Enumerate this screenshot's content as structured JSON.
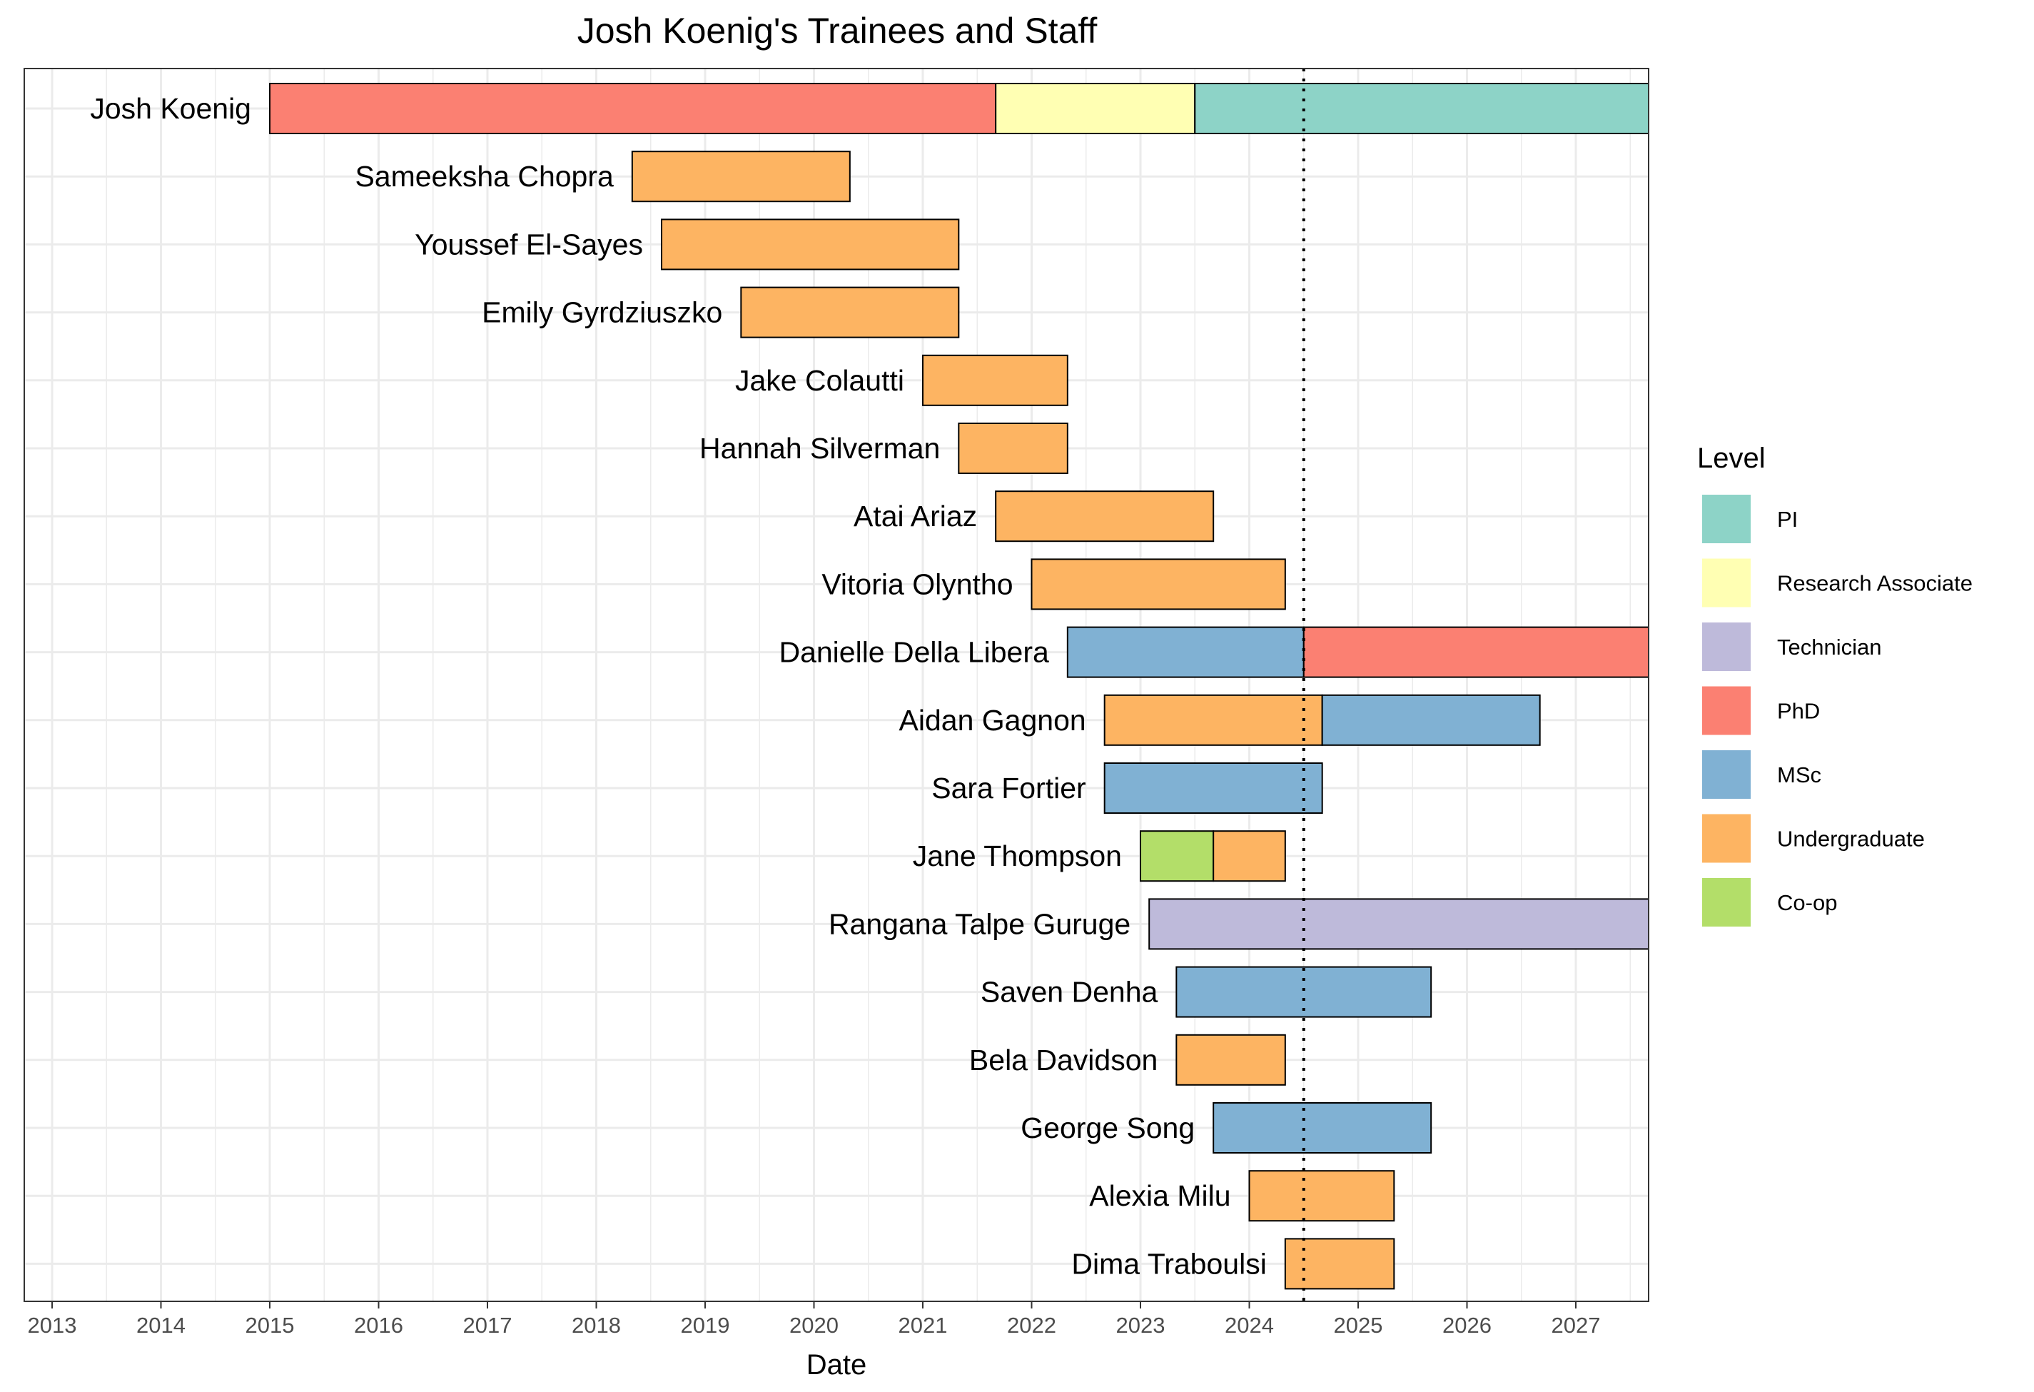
{
  "chart_data": {
    "type": "gantt",
    "title": "Josh Koenig's Trainees and Staff",
    "xlabel": "Date",
    "xlim": [
      2012.73,
      2027.67
    ],
    "x_ticks": [
      "2013",
      "2014",
      "2015",
      "2016",
      "2017",
      "2018",
      "2019",
      "2020",
      "2021",
      "2022",
      "2023",
      "2024",
      "2025",
      "2026",
      "2027"
    ],
    "reference_line": 2024.5,
    "legend": {
      "title": "Level",
      "position": "right",
      "items": [
        {
          "label": "PI",
          "color": "#8DD3C7"
        },
        {
          "label": "Research Associate",
          "color": "#FFFFB3"
        },
        {
          "label": "Technician",
          "color": "#BEBADA"
        },
        {
          "label": "PhD",
          "color": "#FB8072"
        },
        {
          "label": "MSc",
          "color": "#80B1D3"
        },
        {
          "label": "Undergraduate",
          "color": "#FDB462"
        },
        {
          "label": "Co-op",
          "color": "#B3DE69"
        }
      ]
    },
    "rows": [
      {
        "name": "Josh Koenig",
        "segments": [
          {
            "start": 2015.0,
            "end": 2021.67,
            "level": "PhD"
          },
          {
            "start": 2021.67,
            "end": 2023.5,
            "level": "Research Associate"
          },
          {
            "start": 2023.5,
            "end": 2027.67,
            "level": "PI"
          }
        ]
      },
      {
        "name": "Sameeksha Chopra",
        "segments": [
          {
            "start": 2018.33,
            "end": 2020.33,
            "level": "Undergraduate"
          }
        ]
      },
      {
        "name": "Youssef El-Sayes",
        "segments": [
          {
            "start": 2018.6,
            "end": 2021.33,
            "level": "Undergraduate"
          }
        ]
      },
      {
        "name": "Emily Gyrdziuszko",
        "segments": [
          {
            "start": 2019.33,
            "end": 2021.33,
            "level": "Undergraduate"
          }
        ]
      },
      {
        "name": "Jake Colautti",
        "segments": [
          {
            "start": 2021.0,
            "end": 2022.33,
            "level": "Undergraduate"
          }
        ]
      },
      {
        "name": "Hannah Silverman",
        "segments": [
          {
            "start": 2021.33,
            "end": 2022.33,
            "level": "Undergraduate"
          }
        ]
      },
      {
        "name": "Atai Ariaz",
        "segments": [
          {
            "start": 2021.67,
            "end": 2023.67,
            "level": "Undergraduate"
          }
        ]
      },
      {
        "name": "Vitoria Olyntho",
        "segments": [
          {
            "start": 2022.0,
            "end": 2024.33,
            "level": "Undergraduate"
          }
        ]
      },
      {
        "name": "Danielle Della Libera",
        "segments": [
          {
            "start": 2022.33,
            "end": 2024.5,
            "level": "MSc"
          },
          {
            "start": 2024.5,
            "end": 2027.67,
            "level": "PhD"
          }
        ]
      },
      {
        "name": "Aidan Gagnon",
        "segments": [
          {
            "start": 2022.67,
            "end": 2024.67,
            "level": "Undergraduate"
          },
          {
            "start": 2024.67,
            "end": 2026.67,
            "level": "MSc"
          }
        ]
      },
      {
        "name": "Sara Fortier",
        "segments": [
          {
            "start": 2022.67,
            "end": 2024.67,
            "level": "MSc"
          }
        ]
      },
      {
        "name": "Jane Thompson",
        "segments": [
          {
            "start": 2023.0,
            "end": 2023.67,
            "level": "Co-op"
          },
          {
            "start": 2023.67,
            "end": 2024.33,
            "level": "Undergraduate"
          }
        ]
      },
      {
        "name": "Rangana Talpe Guruge",
        "segments": [
          {
            "start": 2023.08,
            "end": 2027.67,
            "level": "Technician"
          }
        ]
      },
      {
        "name": "Saven Denha",
        "segments": [
          {
            "start": 2023.33,
            "end": 2025.67,
            "level": "MSc"
          }
        ]
      },
      {
        "name": "Bela Davidson",
        "segments": [
          {
            "start": 2023.33,
            "end": 2024.33,
            "level": "Undergraduate"
          }
        ]
      },
      {
        "name": "George Song",
        "segments": [
          {
            "start": 2023.67,
            "end": 2025.67,
            "level": "MSc"
          }
        ]
      },
      {
        "name": "Alexia Milu",
        "segments": [
          {
            "start": 2024.0,
            "end": 2025.33,
            "level": "Undergraduate"
          }
        ]
      },
      {
        "name": "Dima Traboulsi",
        "segments": [
          {
            "start": 2024.33,
            "end": 2025.33,
            "level": "Undergraduate"
          }
        ]
      }
    ]
  }
}
